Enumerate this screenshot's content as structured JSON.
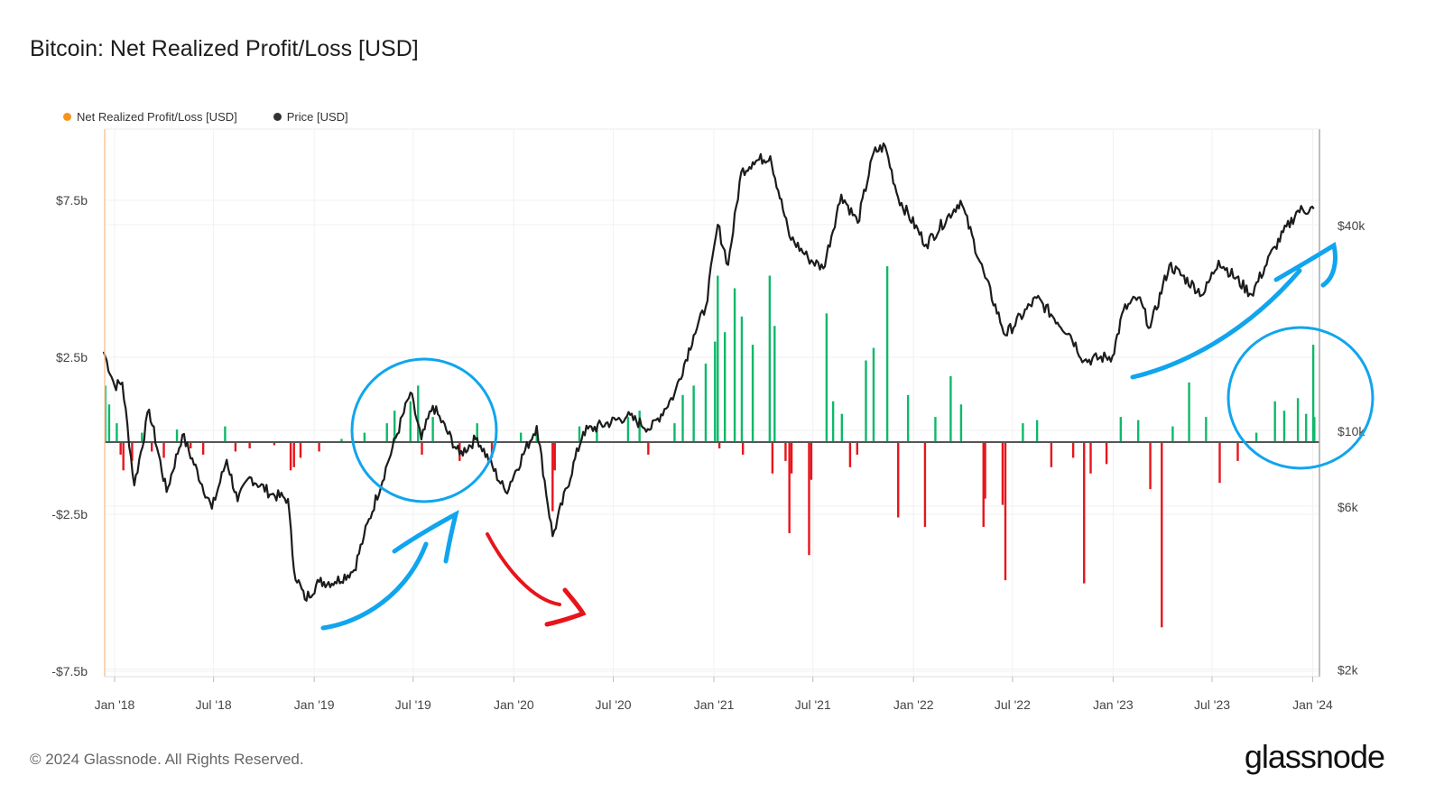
{
  "chart_data": {
    "type": "bar",
    "title": "Bitcoin: Net Realized Profit/Loss [USD]",
    "legend": [
      {
        "label": "Net Realized Profit/Loss [USD]",
        "color": "#f7931a"
      },
      {
        "label": "Price [USD]",
        "color": "#333333"
      }
    ],
    "legend_placement": "top-left",
    "colors": {
      "profit": "#0fb86a",
      "loss": "#e8141b",
      "price": "#1c1c1c",
      "annotation_blue": "#10a5ee",
      "annotation_red": "#e8141b"
    },
    "x_ticks": [
      "Jan '18",
      "Jul '18",
      "Jan '19",
      "Jul '19",
      "Jan '20",
      "Jul '20",
      "Jan '21",
      "Jul '21",
      "Jan '22",
      "Jul '22",
      "Jan '23",
      "Jul '23",
      "Jan '24"
    ],
    "x_tick_dates": [
      "2018-01-01",
      "2018-07-01",
      "2019-01-01",
      "2019-07-01",
      "2020-01-01",
      "2020-07-01",
      "2021-01-01",
      "2021-07-01",
      "2022-01-01",
      "2022-07-01",
      "2023-01-01",
      "2023-07-01",
      "2024-01-01"
    ],
    "x_range": [
      "2017-12-12",
      "2024-01-05"
    ],
    "left_axis": {
      "label": "Net Realized Profit/Loss",
      "unit": "USD billions",
      "ticks": [
        "$7.5b",
        "$2.5b",
        "-$2.5b",
        "-$7.5b"
      ],
      "tick_values": [
        7.5,
        2.5,
        -2.5,
        -7.5
      ],
      "ylim": [
        -7.7,
        9.7
      ]
    },
    "right_axis": {
      "label": "Price",
      "scale": "log",
      "ticks": [
        "$40k",
        "$10k",
        "$6k",
        "$2k"
      ],
      "tick_values": [
        40000,
        10000,
        6000,
        2000
      ],
      "ylim": [
        1950,
        103000
      ]
    },
    "price": [
      [
        "2017-12-12",
        17000
      ],
      [
        "2018-01-01",
        13500
      ],
      [
        "2018-01-15",
        13800
      ],
      [
        "2018-02-06",
        6900
      ],
      [
        "2018-03-05",
        11500
      ],
      [
        "2018-04-06",
        6600
      ],
      [
        "2018-05-05",
        9700
      ],
      [
        "2018-06-28",
        5900
      ],
      [
        "2018-07-25",
        8200
      ],
      [
        "2018-08-14",
        6200
      ],
      [
        "2018-09-05",
        7300
      ],
      [
        "2018-10-15",
        6500
      ],
      [
        "2018-11-14",
        6300
      ],
      [
        "2018-11-25",
        3900
      ],
      [
        "2018-12-15",
        3200
      ],
      [
        "2019-01-10",
        3600
      ],
      [
        "2019-02-08",
        3600
      ],
      [
        "2019-03-15",
        3900
      ],
      [
        "2019-04-02",
        4900
      ],
      [
        "2019-05-15",
        8000
      ],
      [
        "2019-06-26",
        12900
      ],
      [
        "2019-07-16",
        9400
      ],
      [
        "2019-08-06",
        11800
      ],
      [
        "2019-09-24",
        8500
      ],
      [
        "2019-10-26",
        9500
      ],
      [
        "2019-12-17",
        6600
      ],
      [
        "2020-02-12",
        10300
      ],
      [
        "2020-03-12",
        4900
      ],
      [
        "2020-05-07",
        9900
      ],
      [
        "2020-07-26",
        11000
      ],
      [
        "2020-09-08",
        10100
      ],
      [
        "2020-10-21",
        12800
      ],
      [
        "2020-11-25",
        19000
      ],
      [
        "2020-12-17",
        23000
      ],
      [
        "2021-01-08",
        40000
      ],
      [
        "2021-01-27",
        30500
      ],
      [
        "2021-02-20",
        57000
      ],
      [
        "2021-03-13",
        61000
      ],
      [
        "2021-04-14",
        63500
      ],
      [
        "2021-05-19",
        37000
      ],
      [
        "2021-06-22",
        32000
      ],
      [
        "2021-07-20",
        29800
      ],
      [
        "2021-08-22",
        49000
      ],
      [
        "2021-09-21",
        40500
      ],
      [
        "2021-10-20",
        65000
      ],
      [
        "2021-11-10",
        68000
      ],
      [
        "2021-12-04",
        48000
      ],
      [
        "2022-01-24",
        35000
      ],
      [
        "2022-03-28",
        47000
      ],
      [
        "2022-05-12",
        28000
      ],
      [
        "2022-06-18",
        19000
      ],
      [
        "2022-08-14",
        24400
      ],
      [
        "2022-10-15",
        19000
      ],
      [
        "2022-11-09",
        16000
      ],
      [
        "2022-12-31",
        16500
      ],
      [
        "2023-01-20",
        22500
      ],
      [
        "2023-02-16",
        24500
      ],
      [
        "2023-03-10",
        20000
      ],
      [
        "2023-04-14",
        30500
      ],
      [
        "2023-06-15",
        25000
      ],
      [
        "2023-07-13",
        31400
      ],
      [
        "2023-09-11",
        25000
      ],
      [
        "2023-10-24",
        34500
      ],
      [
        "2023-12-05",
        44000
      ],
      [
        "2024-01-03",
        44500
      ]
    ],
    "net_realized_pnl_billions": [
      [
        "2017-12-15",
        1.8
      ],
      [
        "2017-12-22",
        1.2
      ],
      [
        "2018-01-05",
        0.6
      ],
      [
        "2018-01-12",
        -0.4
      ],
      [
        "2018-01-17",
        -0.9
      ],
      [
        "2018-02-02",
        -0.6
      ],
      [
        "2018-02-20",
        0.3
      ],
      [
        "2018-03-10",
        -0.3
      ],
      [
        "2018-04-01",
        -0.5
      ],
      [
        "2018-04-25",
        0.4
      ],
      [
        "2018-05-20",
        -0.2
      ],
      [
        "2018-06-12",
        -0.4
      ],
      [
        "2018-07-22",
        0.5
      ],
      [
        "2018-08-10",
        -0.3
      ],
      [
        "2018-09-05",
        -0.2
      ],
      [
        "2018-10-20",
        -0.1
      ],
      [
        "2018-11-19",
        -0.9
      ],
      [
        "2018-11-25",
        -0.8
      ],
      [
        "2018-12-07",
        -0.5
      ],
      [
        "2019-01-10",
        -0.3
      ],
      [
        "2019-02-20",
        0.1
      ],
      [
        "2019-04-03",
        0.3
      ],
      [
        "2019-05-14",
        0.6
      ],
      [
        "2019-05-28",
        1.0
      ],
      [
        "2019-06-26",
        1.3
      ],
      [
        "2019-07-10",
        1.8
      ],
      [
        "2019-07-17",
        -0.4
      ],
      [
        "2019-08-06",
        0.8
      ],
      [
        "2019-09-24",
        -0.6
      ],
      [
        "2019-10-26",
        0.6
      ],
      [
        "2019-11-22",
        -0.5
      ],
      [
        "2020-01-14",
        0.3
      ],
      [
        "2020-02-12",
        0.4
      ],
      [
        "2020-03-12",
        -2.2
      ],
      [
        "2020-03-16",
        -0.9
      ],
      [
        "2020-04-30",
        0.5
      ],
      [
        "2020-06-01",
        0.5
      ],
      [
        "2020-07-28",
        0.8
      ],
      [
        "2020-08-18",
        1.0
      ],
      [
        "2020-09-03",
        -0.4
      ],
      [
        "2020-10-21",
        0.6
      ],
      [
        "2020-11-05",
        1.5
      ],
      [
        "2020-11-25",
        1.8
      ],
      [
        "2020-12-17",
        2.5
      ],
      [
        "2021-01-03",
        3.2
      ],
      [
        "2021-01-08",
        5.3
      ],
      [
        "2021-01-11",
        -0.2
      ],
      [
        "2021-01-21",
        3.5
      ],
      [
        "2021-02-08",
        4.9
      ],
      [
        "2021-02-21",
        4.0
      ],
      [
        "2021-02-23",
        -0.4
      ],
      [
        "2021-03-13",
        3.1
      ],
      [
        "2021-04-13",
        5.3
      ],
      [
        "2021-04-18",
        -1.0
      ],
      [
        "2021-04-22",
        3.7
      ],
      [
        "2021-05-12",
        -0.6
      ],
      [
        "2021-05-19",
        -2.9
      ],
      [
        "2021-05-23",
        -1.0
      ],
      [
        "2021-06-24",
        -3.6
      ],
      [
        "2021-06-28",
        -1.2
      ],
      [
        "2021-07-26",
        4.1
      ],
      [
        "2021-08-07",
        1.3
      ],
      [
        "2021-08-23",
        0.9
      ],
      [
        "2021-09-07",
        -0.8
      ],
      [
        "2021-09-20",
        -0.4
      ],
      [
        "2021-10-06",
        2.6
      ],
      [
        "2021-10-20",
        3.0
      ],
      [
        "2021-11-14",
        5.6
      ],
      [
        "2021-12-04",
        -2.4
      ],
      [
        "2021-12-22",
        1.5
      ],
      [
        "2022-01-22",
        -2.7
      ],
      [
        "2022-02-10",
        0.8
      ],
      [
        "2022-03-10",
        2.1
      ],
      [
        "2022-03-29",
        1.2
      ],
      [
        "2022-05-09",
        -2.7
      ],
      [
        "2022-05-12",
        -1.8
      ],
      [
        "2022-06-13",
        -2.0
      ],
      [
        "2022-06-18",
        -4.4
      ],
      [
        "2022-07-20",
        0.6
      ],
      [
        "2022-08-15",
        0.7
      ],
      [
        "2022-09-10",
        -0.8
      ],
      [
        "2022-10-20",
        -0.5
      ],
      [
        "2022-11-09",
        -4.5
      ],
      [
        "2022-11-21",
        -1.0
      ],
      [
        "2022-12-20",
        -0.7
      ],
      [
        "2023-01-15",
        0.8
      ],
      [
        "2023-02-16",
        0.7
      ],
      [
        "2023-03-10",
        -1.5
      ],
      [
        "2023-03-31",
        -5.9
      ],
      [
        "2023-04-20",
        0.5
      ],
      [
        "2023-05-20",
        1.9
      ],
      [
        "2023-06-20",
        0.8
      ],
      [
        "2023-07-15",
        -1.3
      ],
      [
        "2023-08-17",
        -0.6
      ],
      [
        "2023-09-20",
        0.3
      ],
      [
        "2023-10-24",
        1.3
      ],
      [
        "2023-11-10",
        1.0
      ],
      [
        "2023-12-05",
        1.4
      ],
      [
        "2023-12-20",
        0.9
      ],
      [
        "2024-01-02",
        3.1
      ],
      [
        "2024-01-04",
        0.8
      ]
    ]
  },
  "header": {
    "title": "Bitcoin: Net Realized Profit/Loss [USD]"
  },
  "footer": {
    "copyright": "© 2024 Glassnode. All Rights Reserved.",
    "brand": "glassnode"
  }
}
